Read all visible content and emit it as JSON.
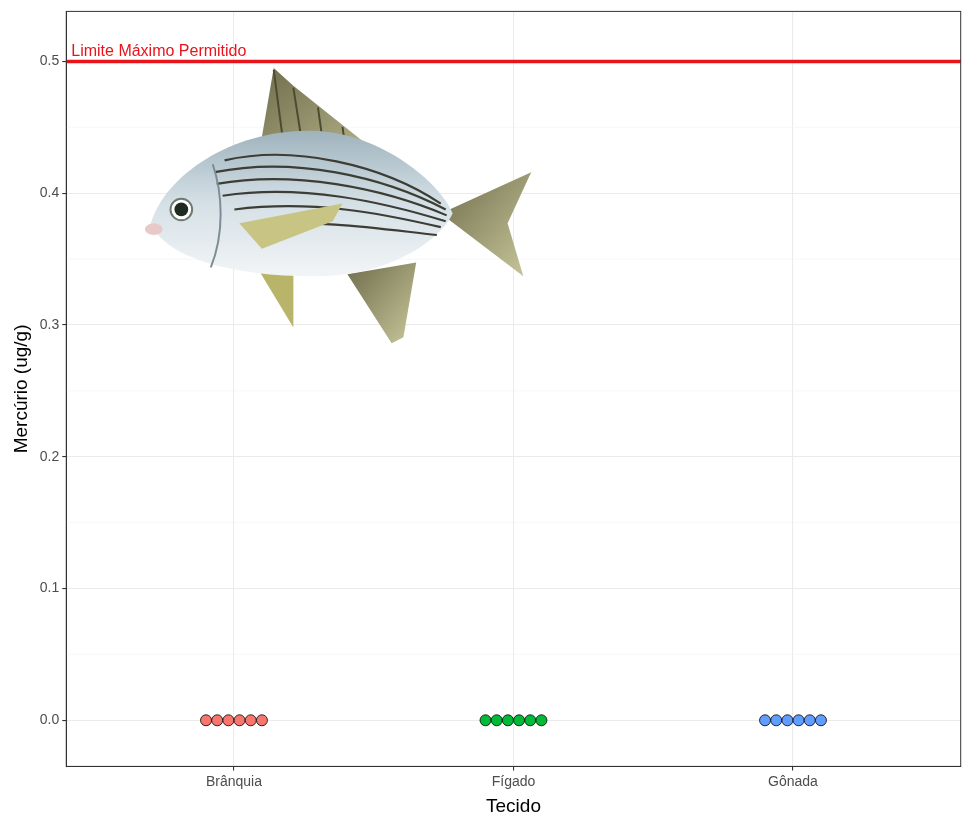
{
  "chart_data": {
    "type": "scatter",
    "x_label": "Tecido",
    "y_label": "Mercúrio (ug/g)",
    "categories": [
      "Brânquia",
      "Fígado",
      "Gônada"
    ],
    "values": [
      [
        0,
        0,
        0,
        0,
        0,
        0
      ],
      [
        0,
        0,
        0,
        0,
        0,
        0
      ],
      [
        0,
        0,
        0,
        0,
        0,
        0
      ]
    ],
    "colors": [
      "#F8766D",
      "#00BA38",
      "#619CFF"
    ],
    "ylim": [
      -0.035,
      0.538
    ],
    "yticks": [
      {
        "value": 0,
        "label": "0.0"
      },
      {
        "value": 0.1,
        "label": "0.1"
      },
      {
        "value": 0.2,
        "label": "0.2"
      },
      {
        "value": 0.3,
        "label": "0.3"
      },
      {
        "value": 0.4,
        "label": "0.4"
      },
      {
        "value": 0.5,
        "label": "0.5"
      }
    ],
    "annotations": [
      {
        "text": "Limite Máximo Permitido",
        "y": 0.5,
        "color": "#E8141B"
      }
    ],
    "grid": true
  }
}
